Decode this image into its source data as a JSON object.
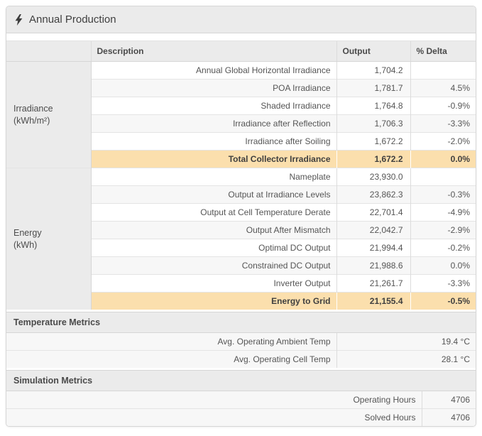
{
  "header": {
    "title": "Annual Production",
    "icon": "lightning-bolt-icon"
  },
  "colors": {
    "header_gray": "#ebebeb",
    "stripe_gray": "#f7f7f7",
    "total_highlight_orange": "#fbdfad",
    "border": "#d6d6d6",
    "text": "#555555"
  },
  "table": {
    "columns": {
      "description": "Description",
      "output": "Output",
      "delta": "% Delta"
    },
    "groups": [
      {
        "label": "Irradiance",
        "unit": "(kWh/m²)",
        "rows": [
          {
            "description": "Annual Global Horizontal Irradiance",
            "output": "1,704.2",
            "delta": "",
            "total": false
          },
          {
            "description": "POA Irradiance",
            "output": "1,781.7",
            "delta": "4.5%",
            "total": false
          },
          {
            "description": "Shaded Irradiance",
            "output": "1,764.8",
            "delta": "-0.9%",
            "total": false
          },
          {
            "description": "Irradiance after Reflection",
            "output": "1,706.3",
            "delta": "-3.3%",
            "total": false
          },
          {
            "description": "Irradiance after Soiling",
            "output": "1,672.2",
            "delta": "-2.0%",
            "total": false
          },
          {
            "description": "Total Collector Irradiance",
            "output": "1,672.2",
            "delta": "0.0%",
            "total": true
          }
        ]
      },
      {
        "label": "Energy",
        "unit": "(kWh)",
        "rows": [
          {
            "description": "Nameplate",
            "output": "23,930.0",
            "delta": "",
            "total": false
          },
          {
            "description": "Output at Irradiance Levels",
            "output": "23,862.3",
            "delta": "-0.3%",
            "total": false
          },
          {
            "description": "Output at Cell Temperature Derate",
            "output": "22,701.4",
            "delta": "-4.9%",
            "total": false
          },
          {
            "description": "Output After Mismatch",
            "output": "22,042.7",
            "delta": "-2.9%",
            "total": false
          },
          {
            "description": "Optimal DC Output",
            "output": "21,994.4",
            "delta": "-0.2%",
            "total": false
          },
          {
            "description": "Constrained DC Output",
            "output": "21,988.6",
            "delta": "0.0%",
            "total": false
          },
          {
            "description": "Inverter Output",
            "output": "21,261.7",
            "delta": "-3.3%",
            "total": false
          },
          {
            "description": "Energy to Grid",
            "output": "21,155.4",
            "delta": "-0.5%",
            "total": true
          }
        ]
      }
    ]
  },
  "sections": [
    {
      "title": "Temperature Metrics",
      "rows": [
        {
          "label": "Avg. Operating Ambient Temp",
          "value": "19.4 °C"
        },
        {
          "label": "Avg. Operating Cell Temp",
          "value": "28.1 °C"
        }
      ]
    },
    {
      "title": "Simulation Metrics",
      "rows": [
        {
          "label": "Operating Hours",
          "value": "4706"
        },
        {
          "label": "Solved Hours",
          "value": "4706"
        }
      ]
    }
  ]
}
